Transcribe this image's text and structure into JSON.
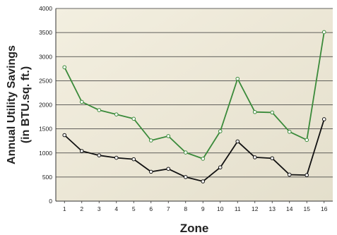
{
  "chart_data": {
    "type": "line",
    "title": "",
    "xlabel": "Zone",
    "ylabel_line1": "Annual Utility Savings",
    "ylabel_line2": "(in BTU.sq. ft.)",
    "categories": [
      "1",
      "2",
      "3",
      "4",
      "5",
      "6",
      "7",
      "8",
      "9",
      "10",
      "11",
      "12",
      "13",
      "14",
      "15",
      "16"
    ],
    "yticks": [
      "0",
      "500",
      "1000",
      "1500",
      "2000",
      "2500",
      "3000",
      "3500",
      "4000"
    ],
    "ylim": [
      0,
      4000
    ],
    "grid": true,
    "series": [
      {
        "color": "#3a8a3a",
        "values": [
          2780,
          2060,
          1890,
          1800,
          1710,
          1260,
          1350,
          1010,
          880,
          1450,
          2540,
          1850,
          1840,
          1440,
          1270,
          3510
        ]
      },
      {
        "color": "#111111",
        "values": [
          1370,
          1040,
          950,
          900,
          870,
          610,
          670,
          500,
          410,
          700,
          1240,
          910,
          890,
          550,
          540,
          1700
        ]
      }
    ]
  }
}
